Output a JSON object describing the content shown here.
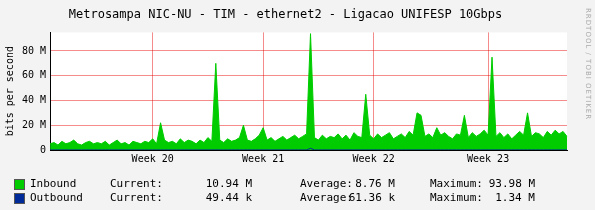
{
  "chart_data": {
    "type": "area",
    "title": "Metrosampa NIC-NU - TIM - ethernet2 - Ligacao UNIFESP 10Gbps",
    "y_label": "bits per second",
    "watermark": "RRDTOOL / TOBI OETIKER",
    "legend": "bottom",
    "grid": true,
    "ylim": [
      0,
      95
    ],
    "yticks": [
      0,
      {
        "value": 20,
        "label": "20 M"
      },
      {
        "value": 40,
        "label": "40 M"
      },
      {
        "value": 60,
        "label": "60 M"
      },
      {
        "value": 80,
        "label": "80 M"
      }
    ],
    "stat_labels": [
      "Current:",
      "Average:",
      "Maximum:"
    ],
    "categories": [
      null,
      null,
      null,
      null,
      null,
      null,
      null,
      null,
      null,
      null,
      null,
      null,
      null,
      null,
      null,
      null,
      null,
      null,
      null,
      null,
      null,
      null,
      null,
      null,
      null,
      null,
      "Week 20",
      null,
      null,
      null,
      null,
      null,
      null,
      null,
      null,
      null,
      null,
      null,
      null,
      null,
      null,
      null,
      null,
      null,
      null,
      null,
      null,
      null,
      null,
      null,
      null,
      null,
      null,
      null,
      "Week 21",
      null,
      null,
      null,
      null,
      null,
      null,
      null,
      null,
      null,
      null,
      null,
      null,
      null,
      null,
      null,
      null,
      null,
      null,
      null,
      null,
      null,
      null,
      null,
      null,
      null,
      null,
      null,
      "Week 22",
      null,
      null,
      null,
      null,
      null,
      null,
      null,
      null,
      null,
      null,
      null,
      null,
      null,
      null,
      null,
      null,
      null,
      null,
      null,
      null,
      null,
      null,
      null,
      null,
      null,
      null,
      null,
      null,
      "Week 23",
      null,
      null,
      null,
      null,
      null,
      null,
      null,
      null,
      null,
      null,
      null,
      null,
      null,
      null,
      null,
      null,
      null,
      null,
      null,
      null
    ],
    "series": [
      {
        "name": "Inbound",
        "color": "#00cc00",
        "current": "10.94 M",
        "average": "8.76 M",
        "maximum": "93.98 M",
        "values": [
          5,
          6,
          4,
          7,
          5,
          6,
          8,
          5,
          4,
          6,
          7,
          5,
          6,
          5,
          7,
          4,
          6,
          8,
          5,
          6,
          4,
          7,
          6,
          5,
          7,
          6,
          9,
          5,
          22,
          8,
          6,
          7,
          5,
          9,
          6,
          8,
          7,
          5,
          8,
          6,
          10,
          7,
          70,
          8,
          6,
          9,
          7,
          8,
          10,
          20,
          8,
          7,
          9,
          12,
          18,
          8,
          10,
          7,
          9,
          11,
          8,
          10,
          12,
          9,
          11,
          13,
          93.98,
          10,
          8,
          12,
          9,
          11,
          10,
          13,
          9,
          12,
          8,
          14,
          11,
          10,
          45,
          12,
          9,
          13,
          10,
          12,
          14,
          9,
          11,
          13,
          10,
          15,
          12,
          30,
          28,
          11,
          13,
          10,
          18,
          12,
          14,
          11,
          9,
          13,
          12,
          28,
          10,
          14,
          11,
          13,
          16,
          12,
          75,
          11,
          14,
          10,
          13,
          9,
          12,
          15,
          12,
          30,
          11,
          14,
          13,
          10,
          15,
          12,
          16,
          13,
          15,
          10.94
        ]
      },
      {
        "name": "Outbound",
        "color": "#002a97",
        "current": "49.44 k",
        "average": "61.36 k",
        "maximum": "1.34 M",
        "values": [
          0.06,
          0.05,
          0.07,
          0.06,
          0.06,
          0.05,
          0.07,
          0.06,
          0.05,
          0.06,
          0.07,
          0.06,
          0.06,
          0.05,
          0.07,
          0.06,
          0.06,
          0.05,
          0.07,
          0.06,
          0.05,
          0.06,
          0.07,
          0.06,
          0.06,
          0.05,
          0.07,
          0.06,
          0.06,
          0.05,
          0.07,
          0.06,
          0.05,
          0.06,
          0.07,
          0.06,
          0.06,
          0.05,
          0.07,
          0.06,
          0.06,
          0.05,
          0.07,
          0.06,
          0.05,
          0.06,
          0.07,
          0.06,
          0.06,
          0.05,
          0.07,
          0.06,
          0.06,
          0.05,
          0.07,
          0.06,
          0.05,
          0.06,
          0.07,
          0.06,
          0.06,
          0.05,
          0.07,
          0.06,
          0.06,
          0.05,
          1.34,
          0.06,
          0.05,
          0.06,
          0.07,
          0.06,
          0.06,
          0.05,
          0.07,
          0.06,
          0.06,
          0.05,
          0.07,
          0.06,
          0.05,
          0.06,
          0.07,
          0.06,
          0.06,
          0.05,
          0.07,
          0.06,
          0.06,
          0.05,
          0.07,
          0.06,
          0.05,
          0.06,
          0.07,
          0.06,
          0.06,
          0.05,
          0.07,
          0.06,
          0.06,
          0.05,
          0.07,
          0.06,
          0.05,
          0.06,
          0.07,
          0.06,
          0.06,
          0.05,
          0.07,
          0.06,
          0.06,
          0.05,
          0.07,
          0.06,
          0.05,
          0.06,
          0.07,
          0.06,
          0.06,
          0.05,
          0.07,
          0.06,
          0.06,
          0.05,
          0.07,
          0.06,
          0.05,
          0.06,
          0.07,
          0.05
        ]
      }
    ]
  }
}
